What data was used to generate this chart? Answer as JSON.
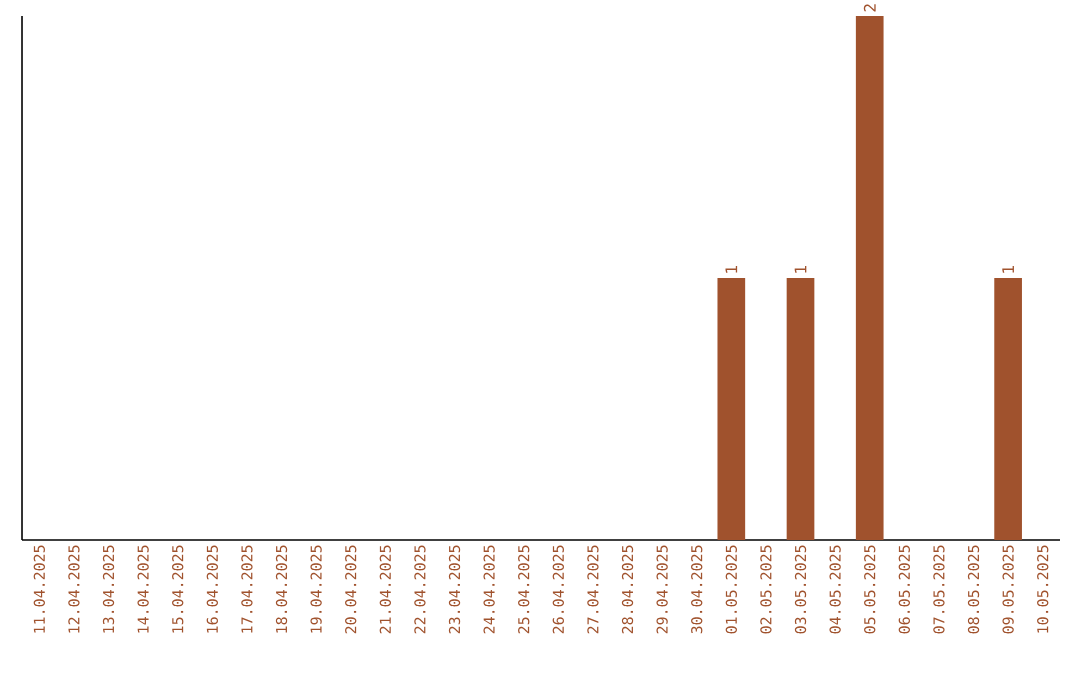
{
  "chart_data": {
    "type": "bar",
    "categories": [
      "11.04.2025",
      "12.04.2025",
      "13.04.2025",
      "14.04.2025",
      "15.04.2025",
      "16.04.2025",
      "17.04.2025",
      "18.04.2025",
      "19.04.2025",
      "20.04.2025",
      "21.04.2025",
      "22.04.2025",
      "23.04.2025",
      "24.04.2025",
      "25.04.2025",
      "26.04.2025",
      "27.04.2025",
      "28.04.2025",
      "29.04.2025",
      "30.04.2025",
      "01.05.2025",
      "02.05.2025",
      "03.05.2025",
      "04.05.2025",
      "05.05.2025",
      "06.05.2025",
      "07.05.2025",
      "08.05.2025",
      "09.05.2025",
      "10.05.2025"
    ],
    "values": [
      null,
      null,
      null,
      null,
      null,
      null,
      null,
      null,
      null,
      null,
      null,
      null,
      null,
      null,
      null,
      null,
      null,
      null,
      null,
      null,
      1,
      null,
      1,
      null,
      2,
      null,
      null,
      null,
      1,
      null
    ],
    "value_labels": [
      null,
      null,
      null,
      null,
      null,
      null,
      null,
      null,
      null,
      null,
      null,
      null,
      null,
      null,
      null,
      null,
      null,
      null,
      null,
      null,
      "1",
      null,
      "1",
      null,
      "2",
      null,
      null,
      null,
      "1",
      null
    ],
    "color": "#a0522d"
  }
}
